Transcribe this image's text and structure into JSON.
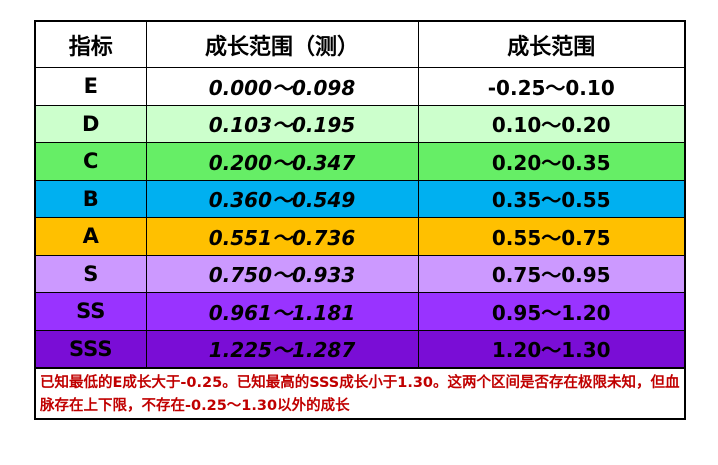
{
  "table": {
    "headers": [
      "指标",
      "成长范围（测）",
      "成长范围"
    ],
    "rows": [
      {
        "grade": "E",
        "measured": "0.000～0.098",
        "range": "-0.25～0.10",
        "color": "#ffffff"
      },
      {
        "grade": "D",
        "measured": "0.103～0.195",
        "range": "0.10～0.20",
        "color": "#ccffcc"
      },
      {
        "grade": "C",
        "measured": "0.200～0.347",
        "range": "0.20～0.35",
        "color": "#66ee66"
      },
      {
        "grade": "B",
        "measured": "0.360～0.549",
        "range": "0.35～0.55",
        "color": "#00b0f0"
      },
      {
        "grade": "A",
        "measured": "0.551～0.736",
        "range": "0.55～0.75",
        "color": "#ffc000"
      },
      {
        "grade": "S",
        "measured": "0.750～0.933",
        "range": "0.75～0.95",
        "color": "#cc99ff"
      },
      {
        "grade": "SS",
        "measured": "0.961～1.181",
        "range": "0.95～1.20",
        "color": "#9933ff"
      },
      {
        "grade": "SSS",
        "measured": "1.225～1.287",
        "range": "1.20～1.30",
        "color": "#7a0dd6"
      }
    ]
  },
  "note": "已知最低的E成长大于-0.25。已知最高的SSS成长小于1.30。这两个区间是否存在极限未知，但血脉存在上下限，不存在-0.25～1.30以外的成长",
  "colors": {
    "note_text": "#c00000",
    "border": "#000000"
  }
}
